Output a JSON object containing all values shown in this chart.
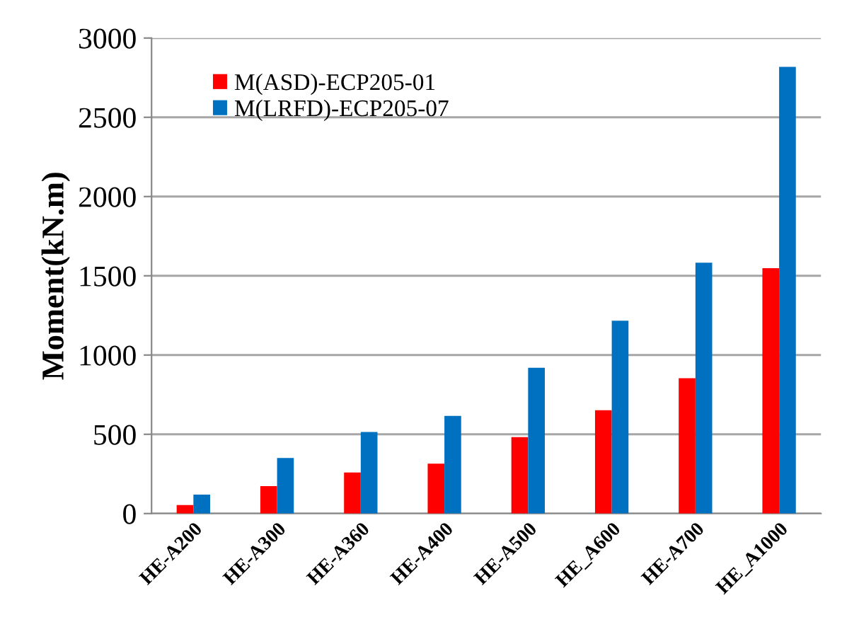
{
  "chart_data": {
    "type": "bar",
    "ylabel": "Moment(kN.m)",
    "categories": [
      "HE-A200",
      "HE-A300",
      "HE-A360",
      "HE-A400",
      "HE-A500",
      "HE_A600",
      "HE-A700",
      "HE_A1000"
    ],
    "series": [
      {
        "name": "M(ASD)-ECP205-01",
        "color": "#ff0000",
        "values": [
          54,
          173,
          259,
          315,
          482,
          652,
          854,
          1548
        ]
      },
      {
        "name": "M(LRFD)-ECP205-07",
        "color": "#0070c0",
        "values": [
          119,
          351,
          515,
          616,
          920,
          1217,
          1583,
          2818
        ]
      }
    ],
    "ylim": [
      0,
      3000
    ],
    "yticks": [
      0,
      500,
      1000,
      1500,
      2000,
      2500,
      3000
    ],
    "grid": "y",
    "legend": "top left"
  }
}
